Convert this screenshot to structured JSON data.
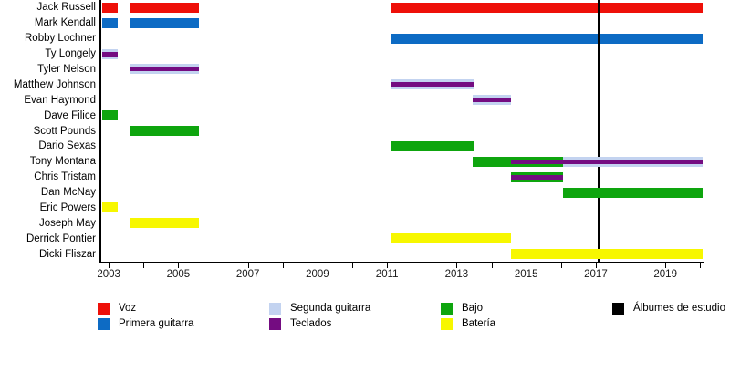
{
  "chart_data": {
    "type": "gantt",
    "title": "",
    "description": "Timeline of band members by instrument with studio-album release line",
    "x_axis": {
      "min": 2002.76,
      "max": 2020.07,
      "tick_interval_years": 1,
      "first_tick_year": 2003,
      "last_tick_year": 2020,
      "labeled_tick_years": [
        2003,
        2005,
        2007,
        2009,
        2011,
        2013,
        2015,
        2017,
        2019
      ],
      "grid": "off"
    },
    "roles": {
      "voz": {
        "label": "Voz",
        "color": "#ee1009"
      },
      "primera_guitarra": {
        "label": "Primera guitarra",
        "color": "#0d6bc4"
      },
      "segunda_guitarra": {
        "label": "Segunda guitarra",
        "color": "#c3d3f0"
      },
      "teclados": {
        "label": "Teclados",
        "color": "#740c81"
      },
      "bajo": {
        "label": "Bajo",
        "color": "#0ea50e"
      },
      "bateria": {
        "label": "Batería",
        "color": "#f7f700"
      },
      "albumes": {
        "label": "Álbumes de estudio",
        "color": "#000000"
      }
    },
    "members": [
      {
        "name": "Jack Russell",
        "segments": [
          {
            "start": 2002.8,
            "end": 2003.25,
            "roles": [
              "voz"
            ]
          },
          {
            "start": 2003.6,
            "end": 2005.6,
            "roles": [
              "voz"
            ]
          },
          {
            "start": 2011.1,
            "end": 2020.07,
            "roles": [
              "voz"
            ]
          }
        ]
      },
      {
        "name": "Mark Kendall",
        "segments": [
          {
            "start": 2002.8,
            "end": 2003.25,
            "roles": [
              "primera_guitarra"
            ]
          },
          {
            "start": 2003.6,
            "end": 2005.6,
            "roles": [
              "primera_guitarra"
            ]
          }
        ]
      },
      {
        "name": "Robby Lochner",
        "segments": [
          {
            "start": 2011.1,
            "end": 2020.07,
            "roles": [
              "primera_guitarra"
            ]
          }
        ]
      },
      {
        "name": "Ty Longely",
        "segments": [
          {
            "start": 2002.8,
            "end": 2003.25,
            "roles": [
              "segunda_guitarra",
              "teclados"
            ]
          }
        ]
      },
      {
        "name": "Tyler Nelson",
        "segments": [
          {
            "start": 2003.6,
            "end": 2005.6,
            "roles": [
              "segunda_guitarra",
              "teclados"
            ]
          }
        ]
      },
      {
        "name": "Matthew Johnson",
        "segments": [
          {
            "start": 2011.1,
            "end": 2013.5,
            "roles": [
              "segunda_guitarra",
              "teclados"
            ]
          }
        ]
      },
      {
        "name": "Evan Haymond",
        "segments": [
          {
            "start": 2013.45,
            "end": 2014.55,
            "roles": [
              "segunda_guitarra",
              "teclados"
            ]
          }
        ]
      },
      {
        "name": "Dave Filice",
        "segments": [
          {
            "start": 2002.8,
            "end": 2003.25,
            "roles": [
              "bajo"
            ]
          }
        ]
      },
      {
        "name": "Scott Pounds",
        "segments": [
          {
            "start": 2003.6,
            "end": 2005.6,
            "roles": [
              "bajo"
            ]
          }
        ]
      },
      {
        "name": "Dario Sexas",
        "segments": [
          {
            "start": 2011.1,
            "end": 2013.5,
            "roles": [
              "bajo"
            ]
          }
        ]
      },
      {
        "name": "Tony Montana",
        "segments": [
          {
            "start": 2013.45,
            "end": 2014.55,
            "roles": [
              "bajo"
            ]
          },
          {
            "start": 2014.55,
            "end": 2016.05,
            "roles": [
              "bajo",
              "teclados"
            ]
          },
          {
            "start": 2016.05,
            "end": 2020.07,
            "roles": [
              "segunda_guitarra",
              "teclados"
            ]
          }
        ]
      },
      {
        "name": "Chris Tristam",
        "segments": [
          {
            "start": 2014.55,
            "end": 2016.05,
            "roles": [
              "bajo",
              "teclados"
            ]
          }
        ]
      },
      {
        "name": "Dan McNay",
        "segments": [
          {
            "start": 2016.05,
            "end": 2020.07,
            "roles": [
              "bajo"
            ]
          }
        ]
      },
      {
        "name": "Eric Powers",
        "segments": [
          {
            "start": 2002.8,
            "end": 2003.25,
            "roles": [
              "bateria"
            ]
          }
        ]
      },
      {
        "name": "Joseph May",
        "segments": [
          {
            "start": 2003.6,
            "end": 2005.6,
            "roles": [
              "bateria"
            ]
          }
        ]
      },
      {
        "name": "Derrick Pontier",
        "segments": [
          {
            "start": 2011.1,
            "end": 2014.55,
            "roles": [
              "bateria"
            ]
          }
        ]
      },
      {
        "name": "Dicki Fliszar",
        "segments": [
          {
            "start": 2014.55,
            "end": 2020.07,
            "roles": [
              "bateria"
            ]
          }
        ]
      }
    ],
    "album_release_lines": [
      2017.1
    ],
    "legend": {
      "position": "bottom",
      "items": [
        {
          "role": "voz",
          "column": 0,
          "row": 0
        },
        {
          "role": "primera_guitarra",
          "column": 0,
          "row": 1
        },
        {
          "role": "segunda_guitarra",
          "column": 1,
          "row": 0
        },
        {
          "role": "teclados",
          "column": 1,
          "row": 1
        },
        {
          "role": "bajo",
          "column": 2,
          "row": 0
        },
        {
          "role": "bateria",
          "column": 2,
          "row": 1
        },
        {
          "role": "albumes",
          "column": 3,
          "row": 0
        }
      ]
    }
  }
}
